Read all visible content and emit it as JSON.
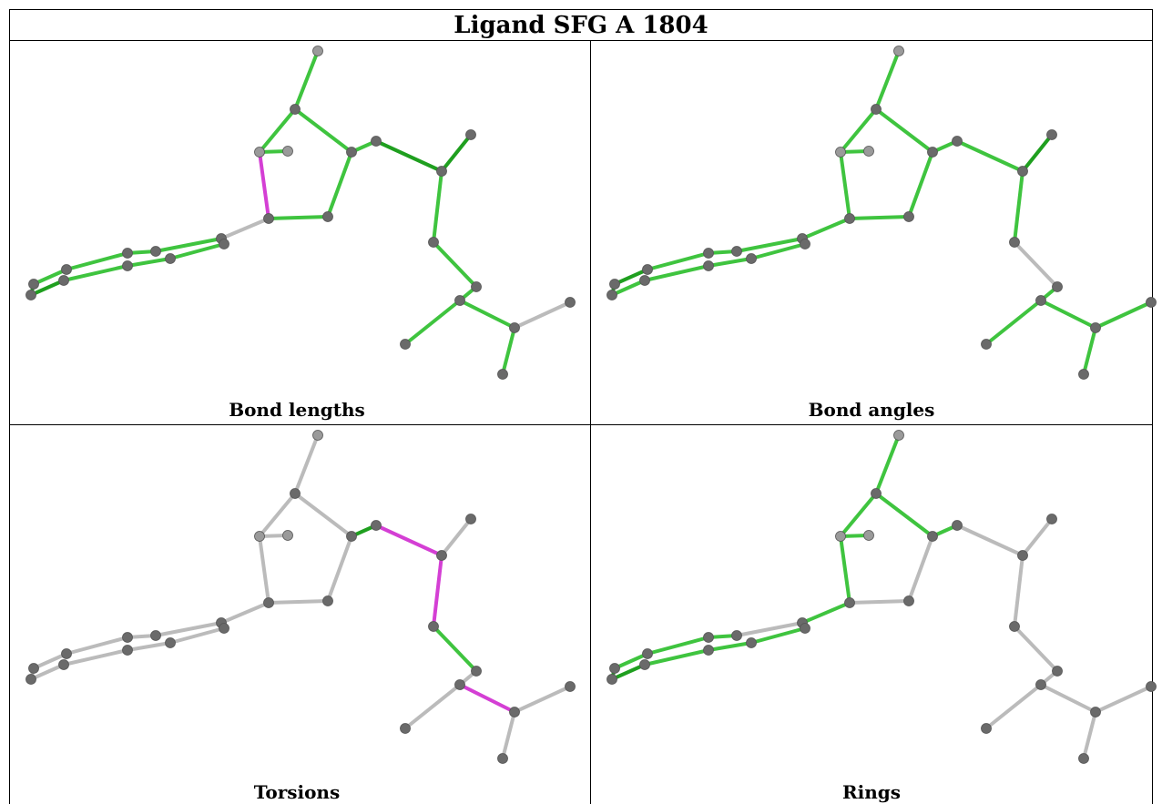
{
  "header": {
    "title": "Ligand SFG A 1804"
  },
  "panels": [
    {
      "label": "Bond lengths"
    },
    {
      "label": "Bond angles"
    },
    {
      "label": "Torsions"
    },
    {
      "label": "Rings"
    }
  ]
}
